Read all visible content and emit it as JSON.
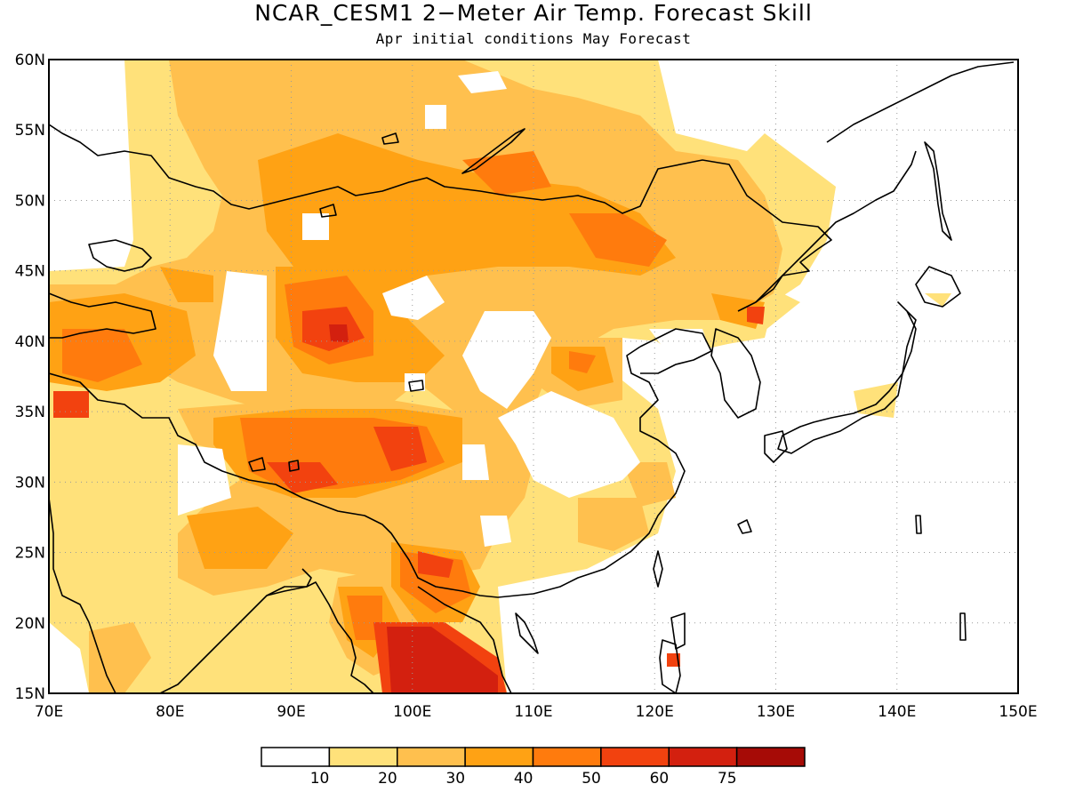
{
  "title": "NCAR_CESM1 2−Meter Air Temp. Forecast Skill",
  "subtitle": "Apr initial conditions  May Forecast",
  "map": {
    "lon_range": [
      70,
      150
    ],
    "lat_range": [
      15,
      60
    ],
    "lon_ticks": [
      "70E",
      "80E",
      "90E",
      "100E",
      "110E",
      "120E",
      "130E",
      "140E",
      "150E"
    ],
    "lat_ticks": [
      "60N",
      "55N",
      "50N",
      "45N",
      "40N",
      "35N",
      "30N",
      "25N",
      "20N",
      "15N"
    ],
    "gridlines": true,
    "gridline_style": "dotted"
  },
  "colorbar": {
    "labels": [
      "10",
      "20",
      "30",
      "40",
      "50",
      "60",
      "75"
    ],
    "colors": [
      "#ffffff",
      "#ffe17a",
      "#ffc04e",
      "#ffa214",
      "#ff7b0d",
      "#f2420f",
      "#d3200f",
      "#a60b06"
    ],
    "placement": "bottom"
  },
  "colors": {
    "frame": "#000000",
    "grid": "#9a9a9a",
    "coast": "#000000"
  }
}
